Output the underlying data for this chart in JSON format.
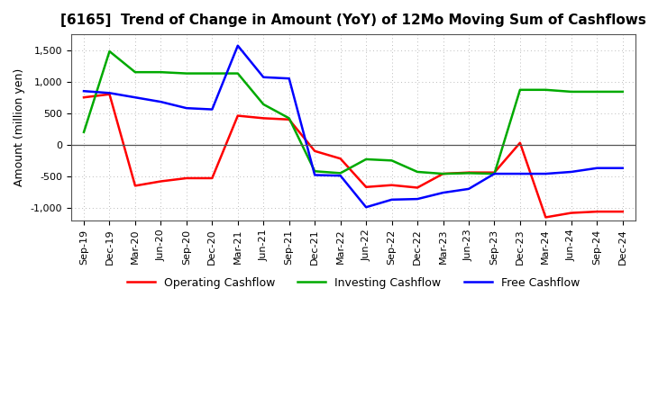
{
  "title": "[6165]  Trend of Change in Amount (YoY) of 12Mo Moving Sum of Cashflows",
  "ylabel": "Amount (million yen)",
  "x_labels": [
    "Sep-19",
    "Dec-19",
    "Mar-20",
    "Jun-20",
    "Sep-20",
    "Dec-20",
    "Mar-21",
    "Jun-21",
    "Sep-21",
    "Dec-21",
    "Mar-22",
    "Jun-22",
    "Sep-22",
    "Dec-22",
    "Mar-23",
    "Jun-23",
    "Sep-23",
    "Dec-23",
    "Mar-24",
    "Jun-24",
    "Sep-24",
    "Dec-24"
  ],
  "operating_cashflow": [
    750,
    800,
    -650,
    -580,
    -530,
    -530,
    460,
    420,
    400,
    -100,
    -220,
    -670,
    -640,
    -680,
    -460,
    -440,
    -440,
    30,
    -1150,
    -1080,
    -1060,
    -1060
  ],
  "investing_cashflow": [
    200,
    1480,
    1150,
    1150,
    1130,
    1130,
    1130,
    640,
    420,
    -420,
    -450,
    -230,
    -250,
    -430,
    -460,
    -450,
    -460,
    870,
    870,
    840,
    840,
    840
  ],
  "free_cashflow": [
    850,
    820,
    750,
    680,
    580,
    560,
    1570,
    1070,
    1050,
    -480,
    -490,
    -990,
    -870,
    -860,
    -760,
    -700,
    -460,
    -460,
    -460,
    -430,
    -370,
    -370
  ],
  "operating_color": "#ff0000",
  "investing_color": "#00aa00",
  "free_color": "#0000ff",
  "ylim": [
    -1200,
    1750
  ],
  "yticks": [
    -1000,
    -500,
    0,
    500,
    1000,
    1500
  ],
  "background_color": "#ffffff",
  "grid_color": "#bbbbbb"
}
